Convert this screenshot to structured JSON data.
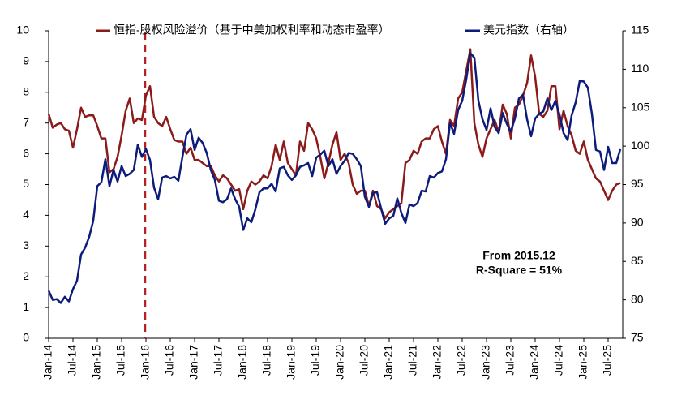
{
  "chart_data": {
    "type": "line",
    "categories": [
      "Jan-14",
      null,
      null,
      null,
      null,
      null,
      "Jul-14",
      null,
      null,
      null,
      null,
      null,
      "Jan-15",
      null,
      null,
      null,
      null,
      null,
      "Jul-15",
      null,
      null,
      null,
      null,
      null,
      "Jan-16",
      null,
      null,
      null,
      null,
      null,
      "Jul-16",
      null,
      null,
      null,
      null,
      null,
      "Jan-17",
      null,
      null,
      null,
      null,
      null,
      "Jul-17",
      null,
      null,
      null,
      null,
      null,
      "Jan-18",
      null,
      null,
      null,
      null,
      null,
      "Jul-18",
      null,
      null,
      null,
      null,
      null,
      "Jan-19",
      null,
      null,
      null,
      null,
      null,
      "Jul-19",
      null,
      null,
      null,
      null,
      null,
      "Jan-20",
      null,
      null,
      null,
      null,
      null,
      "Jul-20",
      null,
      null,
      null,
      null,
      null,
      "Jan-21",
      null,
      null,
      null,
      null,
      null,
      "Jul-21",
      null,
      null,
      null,
      null,
      null,
      "Jan-22",
      null,
      null,
      null,
      null,
      null,
      "Jul-22",
      null,
      null,
      null,
      null,
      null,
      "Jan-23",
      null,
      null,
      null,
      null,
      null,
      "Jul-23",
      null,
      null,
      null,
      null,
      null,
      "Jan-24",
      null,
      null,
      null,
      null,
      null,
      "Jul-24",
      null,
      null,
      null,
      null,
      null,
      "Jan-25",
      null,
      null,
      null,
      null,
      null,
      "Jul-25",
      null,
      null,
      null
    ],
    "series": [
      {
        "name": "恒指-股权风险溢价（基于中美加权利率和动态市盈率）",
        "color": "#8b1a1a",
        "axis": "y",
        "values": [
          7.3,
          6.85,
          6.95,
          7.0,
          6.8,
          6.75,
          6.2,
          6.8,
          7.5,
          7.2,
          7.25,
          7.25,
          6.9,
          6.5,
          6.5,
          5.4,
          5.5,
          5.9,
          6.6,
          7.4,
          7.8,
          7.0,
          7.15,
          7.1,
          7.9,
          8.2,
          7.2,
          7.0,
          6.9,
          7.2,
          6.8,
          6.45,
          6.4,
          6.4,
          6.0,
          6.2,
          5.8,
          5.8,
          5.7,
          5.6,
          5.6,
          5.3,
          5.1,
          5.3,
          5.2,
          5.0,
          4.8,
          4.85,
          4.2,
          4.8,
          5.1,
          5.0,
          5.1,
          5.3,
          5.2,
          5.6,
          6.3,
          5.8,
          6.4,
          5.7,
          5.5,
          5.3,
          6.4,
          6.1,
          7.0,
          6.8,
          6.5,
          5.9,
          5.2,
          5.7,
          6.3,
          6.7,
          5.8,
          6.0,
          5.7,
          5.0,
          4.7,
          4.8,
          4.8,
          4.3,
          4.8,
          4.3,
          4.2,
          3.9,
          4.1,
          4.2,
          4.3,
          4.4,
          5.7,
          5.8,
          6.1,
          6.0,
          6.4,
          6.5,
          6.5,
          6.8,
          6.9,
          6.4,
          6.0,
          7.1,
          6.9,
          7.8,
          8.0,
          8.7,
          9.4,
          7.0,
          6.3,
          5.9,
          6.5,
          6.8,
          7.1,
          6.7,
          7.6,
          7.3,
          6.5,
          7.5,
          7.6,
          7.9,
          8.3,
          9.2,
          8.5,
          7.3,
          7.2,
          7.4,
          8.2,
          8.2,
          6.8,
          7.4,
          6.9,
          6.6,
          6.1,
          6.0,
          6.4,
          5.8,
          5.5,
          5.2,
          5.1,
          4.8,
          4.5,
          4.8,
          5.0,
          5.05
        ]
      },
      {
        "name": "美元指数（右轴）",
        "color": "#0d1b7a",
        "axis": "y2",
        "values": [
          81.2,
          80.0,
          80.1,
          79.6,
          80.4,
          79.8,
          81.4,
          82.5,
          85.9,
          86.8,
          88.2,
          90.3,
          94.8,
          95.3,
          98.3,
          94.8,
          96.9,
          95.4,
          97.4,
          96.1,
          96.4,
          96.9,
          100.2,
          98.6,
          99.6,
          98.2,
          94.6,
          93.1,
          95.9,
          96.1,
          95.8,
          96.0,
          95.5,
          98.6,
          101.5,
          102.2,
          99.5,
          101.1,
          100.4,
          99.1,
          96.9,
          95.6,
          92.9,
          92.7,
          93.1,
          94.5,
          93.1,
          92.1,
          89.1,
          90.6,
          90.1,
          91.8,
          94.0,
          94.5,
          94.5,
          95.1,
          94.1,
          97.1,
          97.3,
          96.2,
          95.6,
          96.2,
          97.3,
          97.5,
          97.8,
          96.1,
          98.5,
          98.9,
          99.4,
          97.4,
          98.3,
          96.4,
          97.4,
          98.1,
          99.1,
          99.0,
          98.3,
          97.4,
          93.4,
          92.1,
          93.9,
          94.0,
          91.9,
          89.9,
          90.6,
          90.9,
          93.2,
          91.3,
          90.0,
          92.4,
          92.2,
          92.6,
          94.2,
          94.1,
          96.1,
          95.9,
          96.5,
          96.7,
          98.3,
          103.0,
          101.6,
          104.7,
          105.9,
          108.7,
          112.1,
          111.5,
          105.9,
          103.5,
          102.1,
          104.9,
          102.5,
          101.7,
          104.3,
          102.9,
          101.9,
          103.6,
          106.2,
          106.7,
          103.5,
          101.3,
          103.6,
          104.2,
          104.5,
          106.2,
          104.7,
          105.9,
          104.1,
          101.7,
          100.8,
          104.0,
          105.7,
          108.5,
          108.4,
          107.6,
          104.2,
          99.5,
          99.3,
          96.9,
          99.9,
          97.8,
          97.8,
          99.6
        ]
      }
    ],
    "ylim": [
      0,
      10
    ],
    "yticks": [
      0,
      1,
      2,
      3,
      4,
      5,
      6,
      7,
      8,
      9,
      10
    ],
    "y2lim": [
      75,
      115
    ],
    "y2ticks": [
      75,
      80,
      85,
      90,
      95,
      100,
      105,
      110,
      115
    ],
    "annotations": [
      "From 2015.12",
      "R-Square = 51%"
    ],
    "legend": "top",
    "grid": false
  }
}
